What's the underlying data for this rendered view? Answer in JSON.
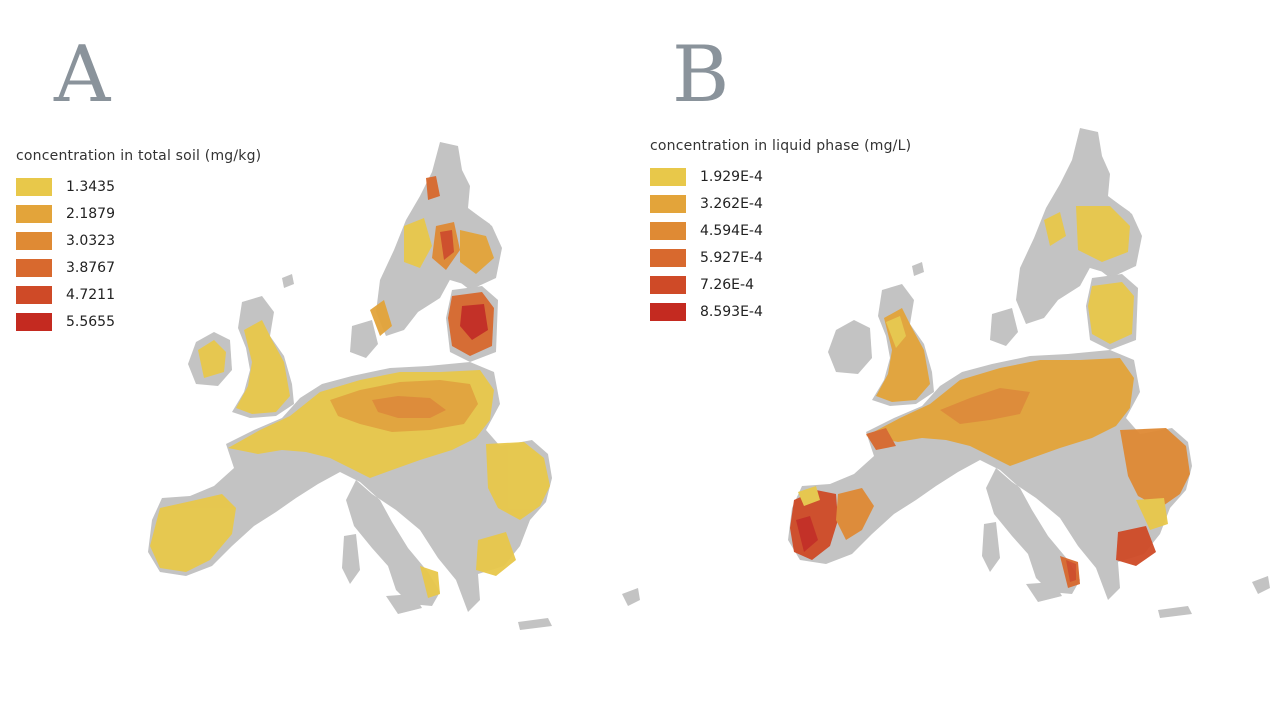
{
  "colors": {
    "land_no_data": "#c3c3c3",
    "scale": [
      "#e8c84a",
      "#e3a43a",
      "#df8a34",
      "#d8692e",
      "#cf4a27",
      "#c42a20"
    ]
  },
  "panels": [
    {
      "letter": "A",
      "legend": {
        "title": "concentration in total soil (mg/kg)",
        "items": [
          {
            "label": "1.3435"
          },
          {
            "label": "2.1879"
          },
          {
            "label": "3.0323"
          },
          {
            "label": "3.8767"
          },
          {
            "label": "4.7211"
          },
          {
            "label": "5.5655"
          }
        ]
      }
    },
    {
      "letter": "B",
      "legend": {
        "title": "concentration in liquid phase (mg/L)",
        "items": [
          {
            "label": "1.929E-4"
          },
          {
            "label": "3.262E-4"
          },
          {
            "label": "4.594E-4"
          },
          {
            "label": "5.927E-4"
          },
          {
            "label": "7.26E-4"
          },
          {
            "label": "8.593E-4"
          }
        ]
      }
    }
  ]
}
